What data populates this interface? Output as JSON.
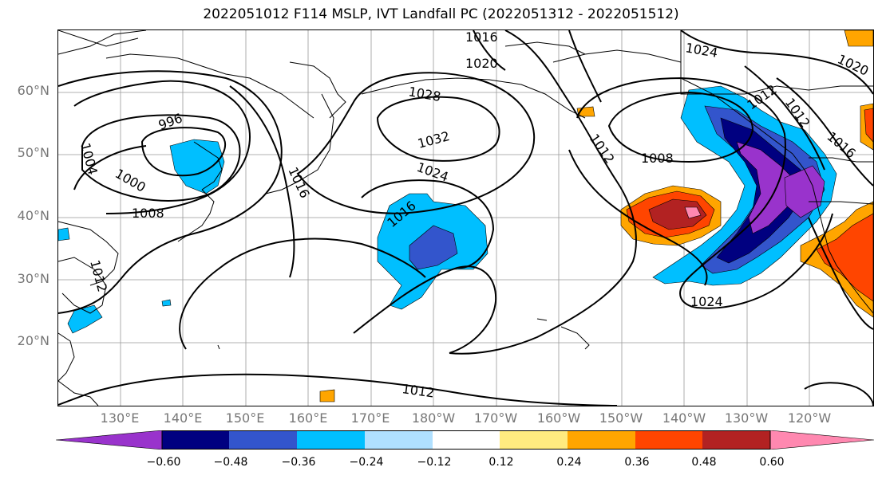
{
  "title": "2022051012 F114 MSLP, IVT Landfall PC (2022051312 - 2022051512)",
  "lat_labels": [
    "60°N",
    "50°N",
    "40°N",
    "30°N",
    "20°N"
  ],
  "lon_labels": [
    "130°E",
    "140°E",
    "150°E",
    "160°E",
    "170°E",
    "180°W",
    "170°W",
    "160°W",
    "150°W",
    "140°W",
    "130°W",
    "120°W"
  ],
  "contour_labels": [
    "1016",
    "1020",
    "1024",
    "1020",
    "1028",
    "1032",
    "1024",
    "1016",
    "1016",
    "996",
    "1004",
    "1000",
    "1008",
    "1012",
    "1012",
    "1008",
    "1012",
    "1012",
    "1016",
    "1024",
    "1012"
  ],
  "colorbar": {
    "colors": [
      "#9933cc",
      "#000080",
      "#3355cc",
      "#00bfff",
      "#b0e0ff",
      "#ffffff",
      "#ffeb80",
      "#ffa500",
      "#ff4500",
      "#b22222",
      "#ff88b0"
    ],
    "tick_labels": [
      "−0.60",
      "−0.48",
      "−0.36",
      "−0.24",
      "−0.12",
      "0.12",
      "0.24",
      "0.36",
      "0.48",
      "0.60"
    ]
  }
}
